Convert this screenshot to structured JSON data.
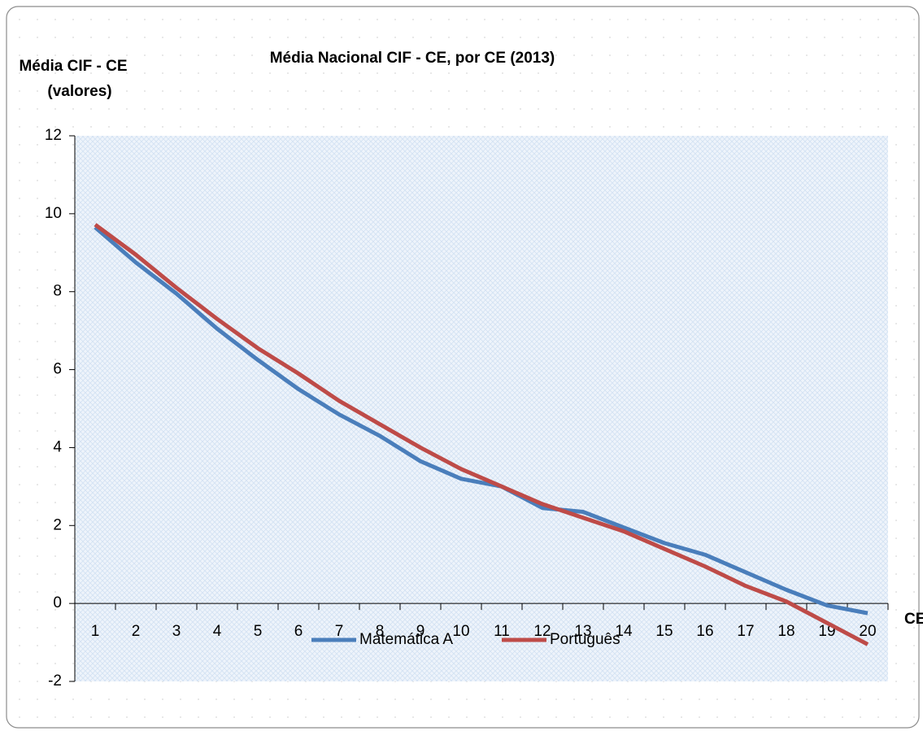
{
  "chart_data": {
    "type": "line",
    "title": "Média Nacional CIF - CE, por CE (2013)",
    "y_label_lines": [
      "Média CIF - CE",
      "(valores)"
    ],
    "x_label": "CE",
    "categories": [
      "1",
      "2",
      "3",
      "4",
      "5",
      "6",
      "7",
      "8",
      "9",
      "10",
      "11",
      "12",
      "13",
      "14",
      "15",
      "16",
      "17",
      "18",
      "19",
      "20"
    ],
    "series": [
      {
        "name": "Matemática A",
        "color": "#4a7ebb",
        "values": [
          9.65,
          8.75,
          7.95,
          7.05,
          6.25,
          5.5,
          4.85,
          4.3,
          3.65,
          3.2,
          3.0,
          2.45,
          2.35,
          1.95,
          1.55,
          1.25,
          0.8,
          0.35,
          -0.05,
          -0.25
        ]
      },
      {
        "name": "Português",
        "color": "#be4b48",
        "values": [
          9.72,
          8.95,
          8.1,
          7.3,
          6.55,
          5.9,
          5.2,
          4.6,
          4.0,
          3.45,
          3.0,
          2.55,
          2.2,
          1.85,
          1.4,
          0.95,
          0.45,
          0.05,
          -0.5,
          -1.05
        ]
      }
    ],
    "ylim": [
      -2,
      12
    ],
    "yticks": [
      -2,
      0,
      2,
      4,
      6,
      8,
      10,
      12
    ],
    "legend": "bottom",
    "grid": false
  }
}
